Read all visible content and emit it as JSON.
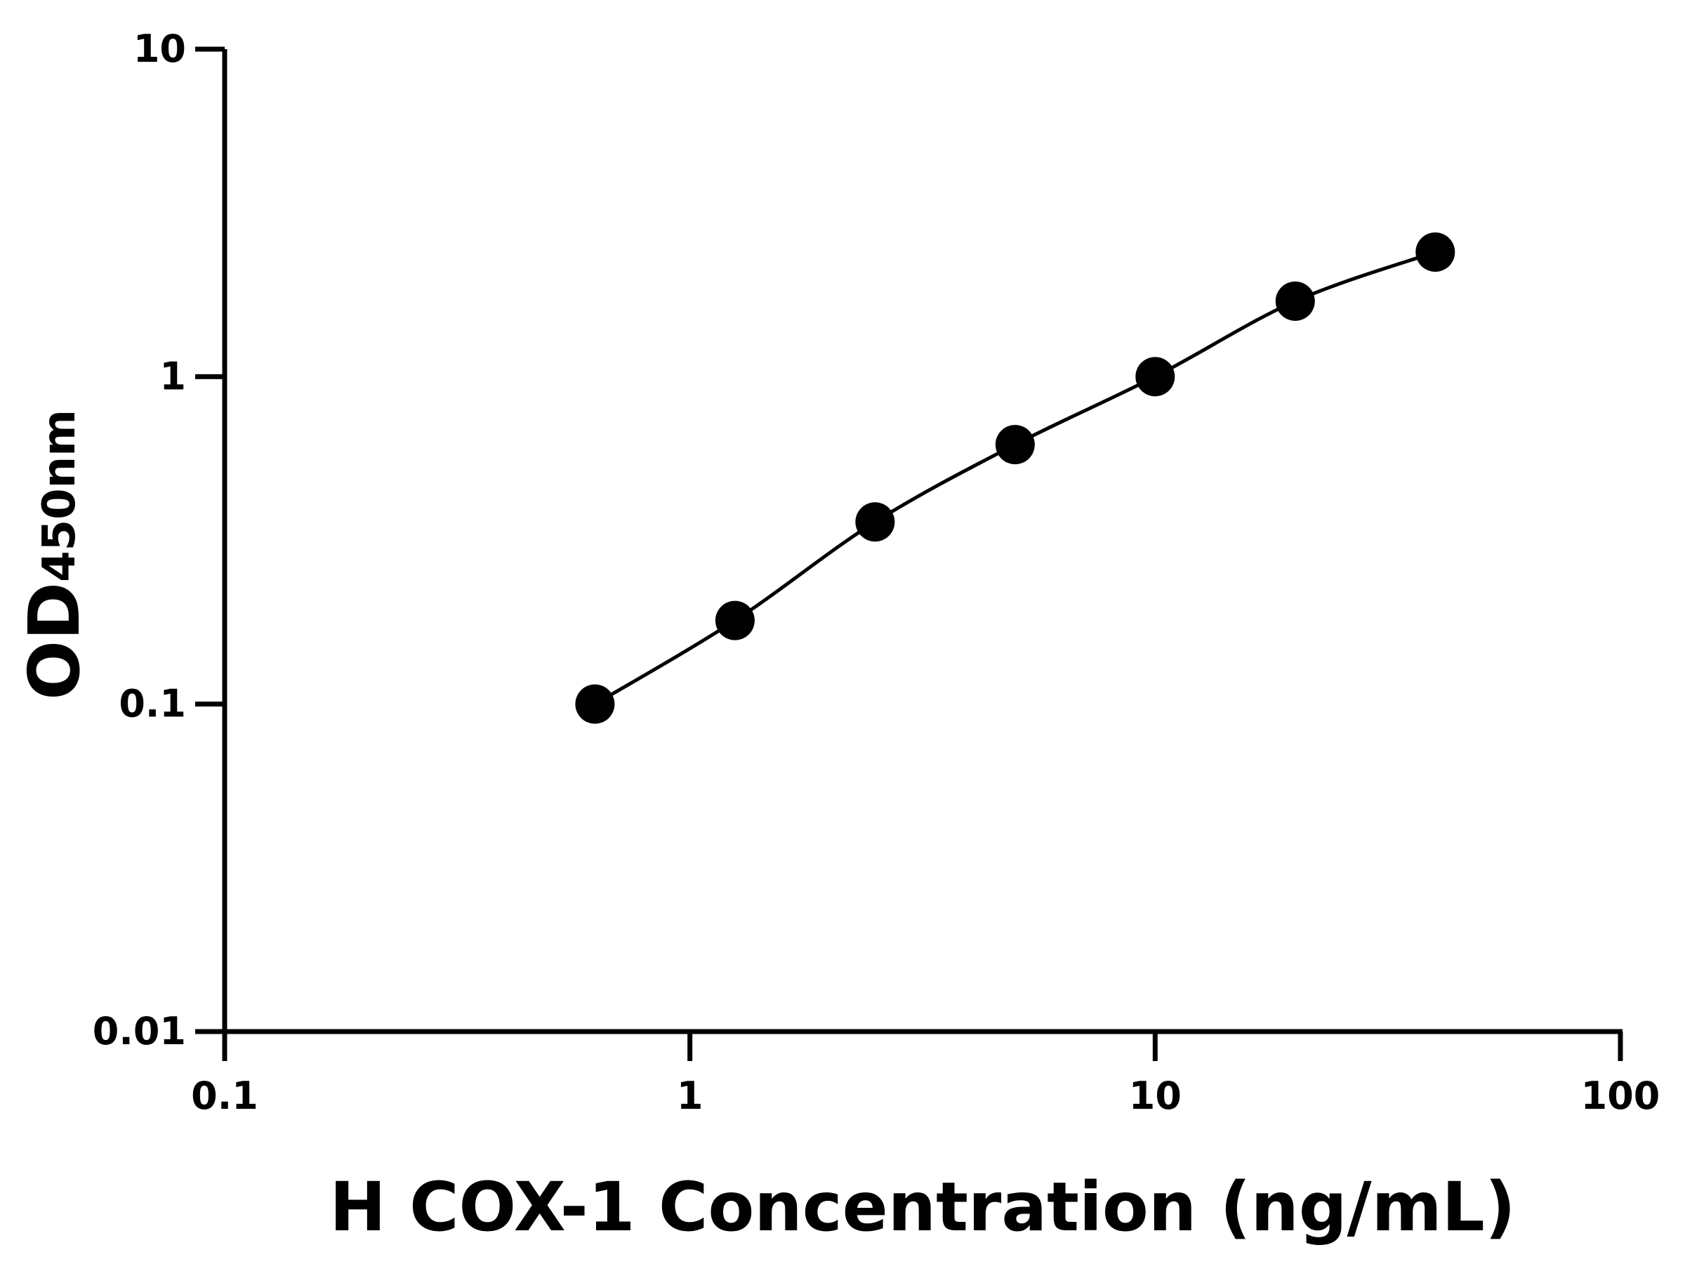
{
  "chart_data": {
    "type": "scatter",
    "x_label": "H COX-1 Concentration (ng/mL)",
    "y_label": "OD",
    "y_label_subscript": "450nm",
    "x": [
      0.625,
      1.25,
      2.5,
      5,
      10,
      20,
      40
    ],
    "values": [
      0.1,
      0.18,
      0.36,
      0.62,
      1.0,
      1.7,
      2.4
    ],
    "color": "#000000",
    "connect_line": true,
    "xscale": "log",
    "yscale": "log",
    "xlim": [
      0.1,
      100
    ],
    "xticks": [
      0.1,
      1,
      10,
      100
    ],
    "ylim": [
      0.01,
      10
    ],
    "yticks": [
      0.01,
      0.1,
      1,
      10
    ]
  }
}
